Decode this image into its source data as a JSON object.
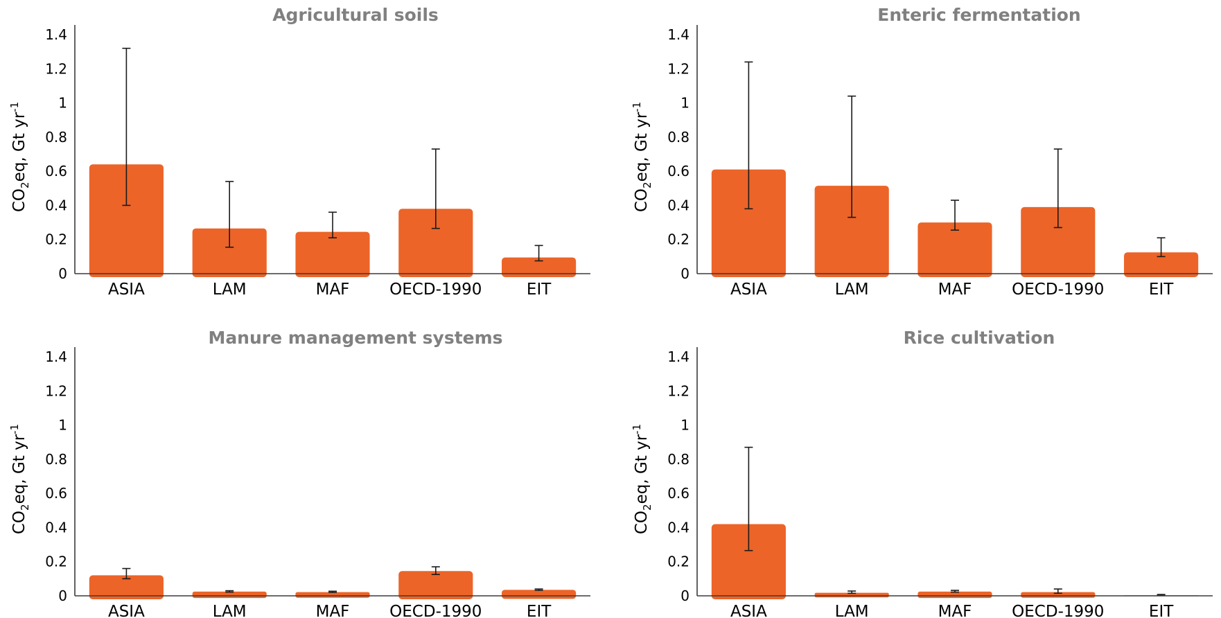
{
  "chart_data": [
    {
      "type": "bar",
      "title": "Agricultural soils",
      "ylabel": {
        "base": "CO",
        "sub": "2",
        "mid": "eq, Gt yr",
        "sup": "-1"
      },
      "ylim": [
        0,
        1.4
      ],
      "yticks": [
        "0",
        "0.2",
        "0.4",
        "0.6",
        "0.8",
        "1",
        "1.2",
        "1.4"
      ],
      "categories": [
        "ASIA",
        "LAM",
        "MAF",
        "OECD-1990",
        "EIT"
      ],
      "values": [
        0.64,
        0.265,
        0.245,
        0.38,
        0.095
      ],
      "error_low": [
        0.4,
        0.155,
        0.21,
        0.265,
        0.075
      ],
      "error_high": [
        1.32,
        0.54,
        0.36,
        0.73,
        0.165
      ],
      "bar_color": "#ec6428"
    },
    {
      "type": "bar",
      "title": "Enteric fermentation",
      "ylabel": {
        "base": "CO",
        "sub": "2",
        "mid": "eq, Gt yr",
        "sup": "-1"
      },
      "ylim": [
        0,
        1.4
      ],
      "yticks": [
        "0",
        "0.2",
        "0.4",
        "0.6",
        "0.8",
        "1",
        "1.2",
        "1.4"
      ],
      "categories": [
        "ASIA",
        "LAM",
        "MAF",
        "OECD-1990",
        "EIT"
      ],
      "values": [
        0.61,
        0.515,
        0.3,
        0.39,
        0.125
      ],
      "error_low": [
        0.38,
        0.33,
        0.255,
        0.27,
        0.1
      ],
      "error_high": [
        1.24,
        1.04,
        0.43,
        0.73,
        0.21
      ],
      "bar_color": "#ec6428"
    },
    {
      "type": "bar",
      "title": "Manure management systems",
      "ylabel": {
        "base": "CO",
        "sub": "2",
        "mid": "eq, Gt yr",
        "sup": "-1"
      },
      "ylim": [
        0,
        1.4
      ],
      "yticks": [
        "0",
        "0.2",
        "0.4",
        "0.6",
        "0.8",
        "1",
        "1.2",
        "1.4"
      ],
      "categories": [
        "ASIA",
        "LAM",
        "MAF",
        "OECD-1990",
        "EIT"
      ],
      "values": [
        0.12,
        0.025,
        0.022,
        0.145,
        0.035
      ],
      "error_low": [
        0.1,
        0.022,
        0.02,
        0.125,
        0.032
      ],
      "error_high": [
        0.16,
        0.03,
        0.027,
        0.17,
        0.04
      ],
      "bar_color": "#ec6428"
    },
    {
      "type": "bar",
      "title": "Rice cultivation",
      "ylabel": {
        "base": "CO",
        "sub": "2",
        "mid": "eq, Gt yr",
        "sup": "-1"
      },
      "ylim": [
        0,
        1.4
      ],
      "yticks": [
        "0",
        "0.2",
        "0.4",
        "0.6",
        "0.8",
        "1",
        "1.2",
        "1.4"
      ],
      "categories": [
        "ASIA",
        "LAM",
        "MAF",
        "OECD-1990",
        "EIT"
      ],
      "values": [
        0.42,
        0.018,
        0.025,
        0.022,
        0.003
      ],
      "error_low": [
        0.265,
        0.015,
        0.022,
        0.015,
        0.002
      ],
      "error_high": [
        0.87,
        0.028,
        0.032,
        0.04,
        0.008
      ],
      "bar_color": "#ec6428"
    }
  ]
}
